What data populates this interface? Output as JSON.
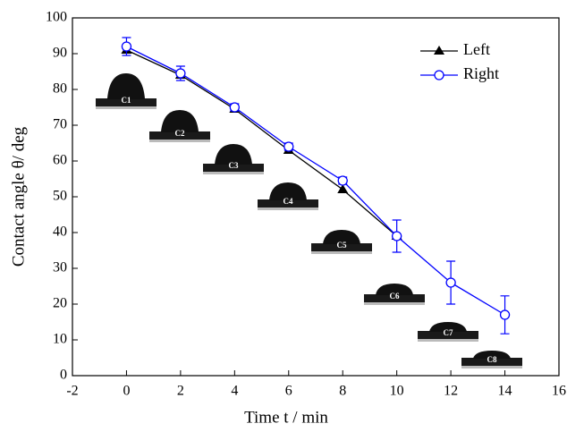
{
  "chart_data": {
    "type": "line",
    "xlabel": "Time t / min",
    "ylabel": "Contact angle θ/ deg",
    "x": [
      0,
      2,
      4,
      6,
      8,
      10,
      12,
      14
    ],
    "series": [
      {
        "name": "Left",
        "color": "#000000",
        "marker": "triangle",
        "values": [
          91,
          84,
          74.5,
          63,
          52,
          39,
          null,
          null
        ]
      },
      {
        "name": "Right",
        "color": "#0000ff",
        "marker": "circle",
        "values": [
          92,
          84.5,
          75,
          64,
          54.5,
          39,
          26,
          17
        ],
        "errors": [
          2.5,
          2,
          1,
          1,
          1,
          4.5,
          6,
          5.3
        ]
      }
    ],
    "annotations": [
      "C1",
      "C2",
      "C3",
      "C4",
      "C5",
      "C6",
      "C7",
      "C8"
    ],
    "xlim": [
      -2,
      16
    ],
    "xticks": [
      -2,
      0,
      2,
      4,
      6,
      8,
      10,
      12,
      14,
      16
    ],
    "ylim": [
      0,
      100
    ],
    "yticks": [
      0,
      10,
      20,
      30,
      40,
      50,
      60,
      70,
      80,
      90,
      100
    ],
    "legend": "upper right",
    "grid": false
  }
}
